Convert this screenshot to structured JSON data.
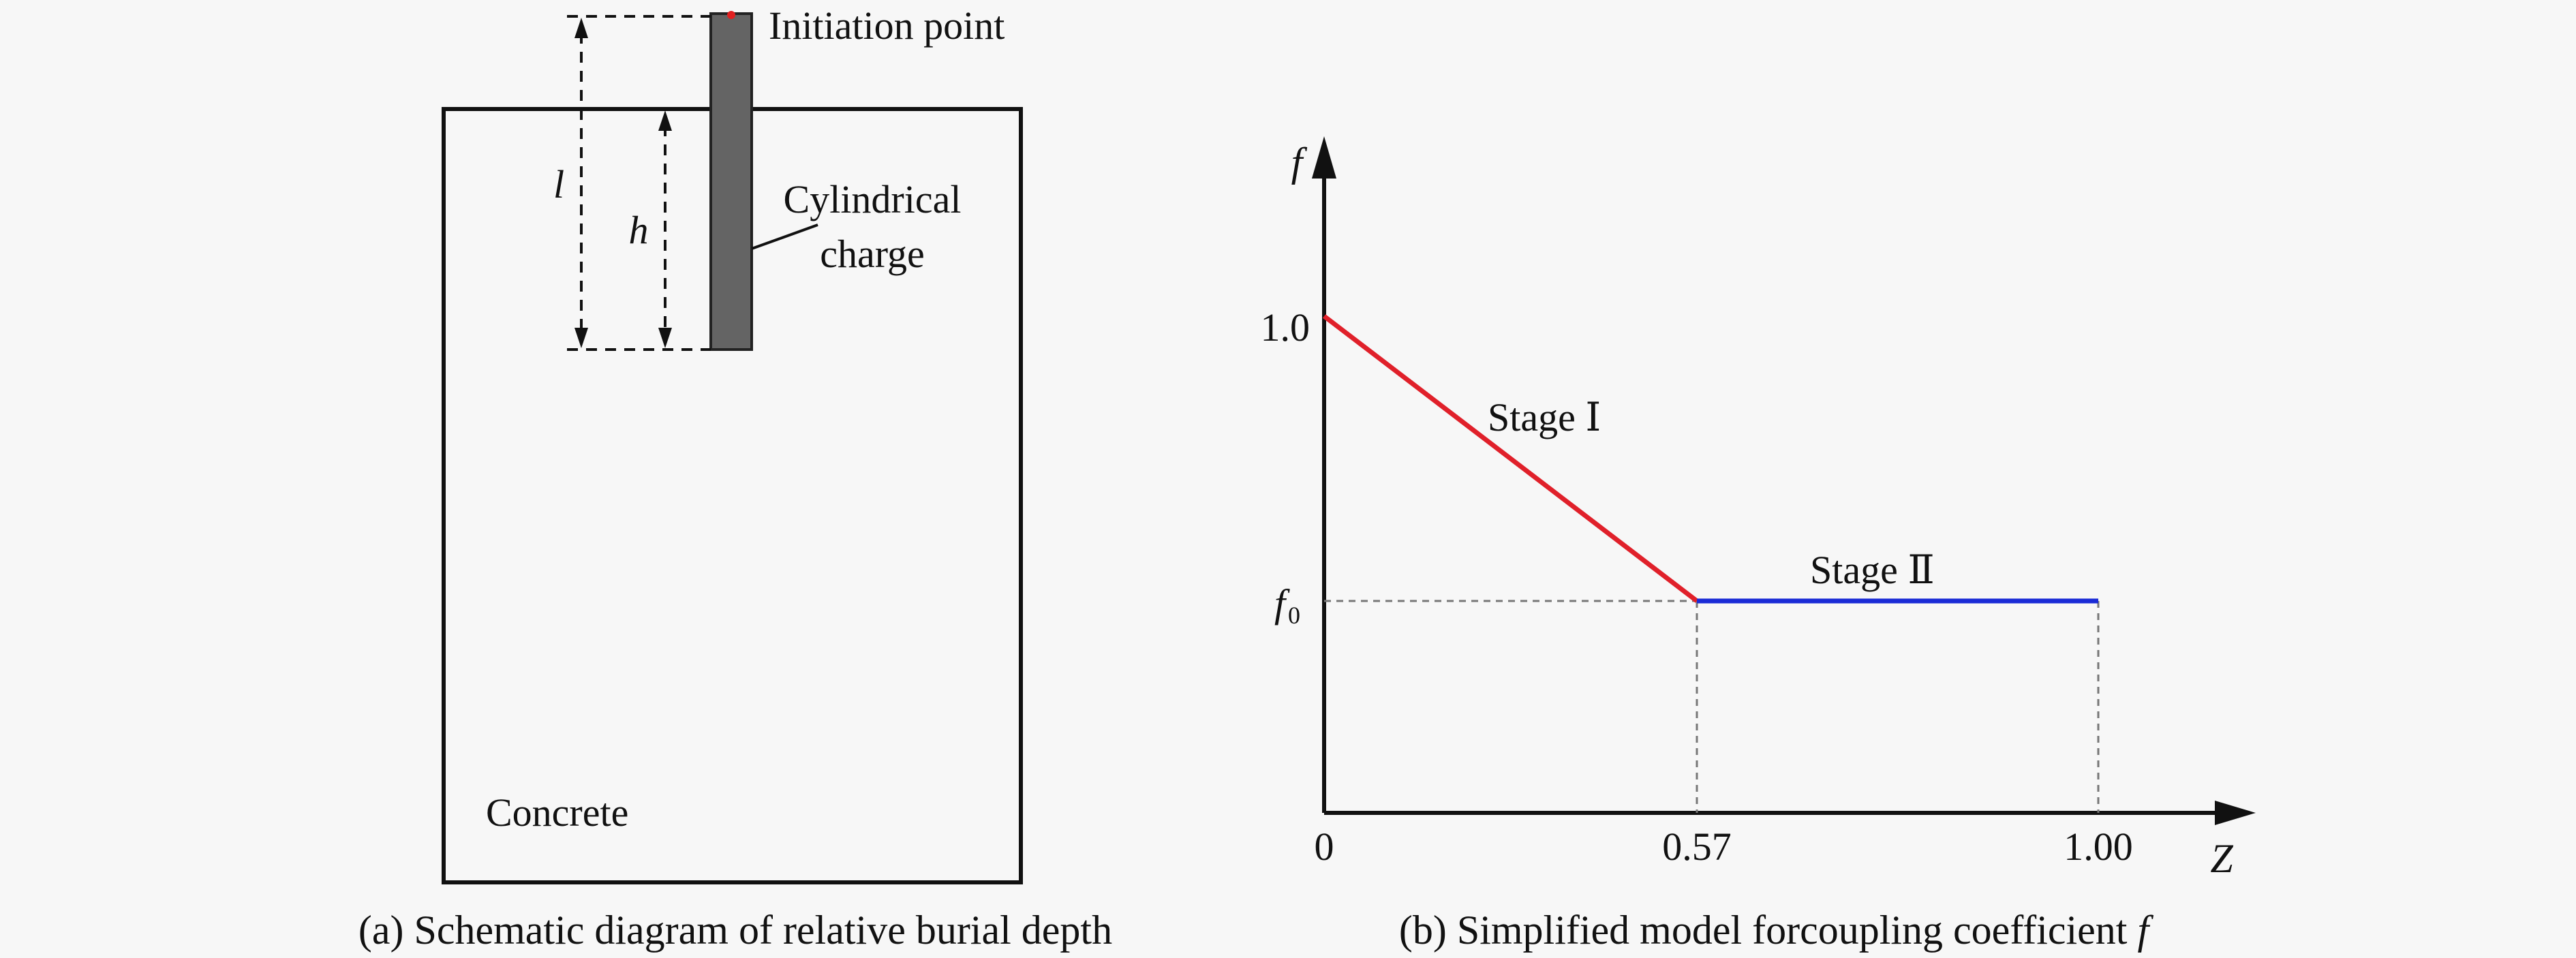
{
  "panel_a": {
    "labels": {
      "initiation_point": "Initiation point",
      "charge_line1": "Cylindrical",
      "charge_line2": "charge",
      "l": "l",
      "h": "h",
      "concrete": "Concrete"
    },
    "caption": "(a) Schematic diagram of relative burial depth",
    "colors": {
      "charge_fill": "#646464",
      "initiation_dot": "#e02020"
    }
  },
  "panel_b": {
    "caption_text": "(b) Simplified model forcoupling coefficient ",
    "caption_var": "f",
    "axis": {
      "y_label": "f",
      "x_label": "Z"
    },
    "ticks": {
      "y_one": "1.0",
      "y_f0_main": "f",
      "y_f0_sub": "0",
      "x_zero": "0",
      "x_mid": "0.57",
      "x_end": "1.00"
    },
    "stage1_label": "Stage Ⅰ",
    "stage2_label": "Stage Ⅱ",
    "colors": {
      "stage1": "#e0202a",
      "stage2": "#1a2bd6",
      "guide": "#777777"
    }
  },
  "chart_data": {
    "type": "line",
    "xlabel": "Z",
    "ylabel": "f",
    "xlim": [
      0,
      1.0
    ],
    "series": [
      {
        "name": "Stage Ⅰ",
        "x": [
          0,
          0.57
        ],
        "y": [
          1.0,
          "f0"
        ]
      },
      {
        "name": "Stage Ⅱ",
        "x": [
          0.57,
          1.0
        ],
        "y": [
          "f0",
          "f0"
        ]
      }
    ]
  }
}
